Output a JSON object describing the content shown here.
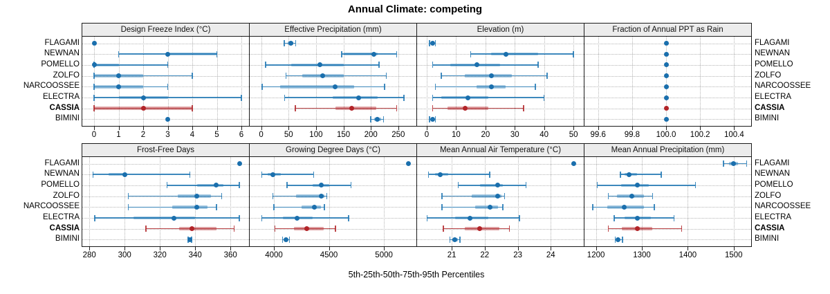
{
  "title": "Annual Climate: competing",
  "caption": "5th-25th-50th-75th-95th Percentiles",
  "colors": {
    "blue": "#1f77b4",
    "blue_dot": "#1a6fad",
    "red": "#b22428",
    "red_dot": "#b22428",
    "strip_bg": "#ececec",
    "grid": "#b4b4b4",
    "border": "#1a1a1a"
  },
  "chart_data": {
    "type": "percentile-dotplot",
    "layout": {
      "rows": 2,
      "cols": 4,
      "legend_position": "none",
      "grid": "dotted"
    },
    "percentile_labels": [
      "5th",
      "25th",
      "50th",
      "75th",
      "95th"
    ],
    "categories": [
      "FLAGAMI",
      "NEWNAN",
      "POMELLO",
      "ZOLFO",
      "NARCOOSSEE",
      "ELECTRA",
      "CASSIA",
      "BIMINI"
    ],
    "highlight_category": "CASSIA",
    "panels": [
      {
        "title": "Design Freeze Index (°C)",
        "xlim": [
          -0.48,
          6.31
        ],
        "ticks": [
          0,
          1,
          2,
          3,
          4,
          5,
          6
        ],
        "tick_labels": [
          "0",
          "1",
          "2",
          "3",
          "4",
          "5",
          "6"
        ],
        "series": [
          [
            0,
            0,
            0,
            0,
            0
          ],
          [
            1,
            3,
            3,
            5,
            5
          ],
          [
            0,
            0,
            0,
            1,
            3
          ],
          [
            0,
            0,
            1,
            2,
            4
          ],
          [
            0,
            0,
            1,
            2,
            3
          ],
          [
            0,
            1,
            2,
            3,
            6
          ],
          [
            0,
            0,
            2,
            4,
            4
          ],
          [
            3,
            3,
            3,
            3,
            3
          ]
        ]
      },
      {
        "title": "Effective Precipitation (mm)",
        "xlim": [
          -21,
          283
        ],
        "ticks": [
          0,
          50,
          100,
          150,
          200,
          250
        ],
        "tick_labels": [
          "0",
          "50",
          "100",
          "150",
          "200",
          "250"
        ],
        "series": [
          [
            42,
            48,
            54,
            58,
            63
          ],
          [
            147,
            150,
            205,
            212,
            247
          ],
          [
            8,
            55,
            107,
            150,
            215
          ],
          [
            45,
            75,
            112,
            150,
            228
          ],
          [
            2,
            35,
            135,
            170,
            225
          ],
          [
            43,
            130,
            178,
            212,
            260
          ],
          [
            62,
            135,
            165,
            210,
            247
          ],
          [
            200,
            206,
            212,
            218,
            223
          ]
        ]
      },
      {
        "title": "Elevation (m)",
        "xlim": [
          -3.3,
          53.5
        ],
        "ticks": [
          0,
          10,
          20,
          30,
          40,
          50
        ],
        "tick_labels": [
          "0",
          "10",
          "20",
          "30",
          "40",
          "50"
        ],
        "series": [
          [
            1,
            1.5,
            2,
            2.5,
            3
          ],
          [
            15,
            22,
            27,
            38,
            50
          ],
          [
            2,
            8,
            17,
            25,
            38
          ],
          [
            5,
            13,
            22,
            29,
            41
          ],
          [
            3,
            17,
            22,
            27,
            37
          ],
          [
            2,
            5,
            14,
            21,
            40
          ],
          [
            2,
            7,
            13,
            21,
            33
          ],
          [
            1,
            1.5,
            2,
            2.5,
            3
          ]
        ]
      },
      {
        "title": "Fraction of Annual PPT as Rain",
        "xlim": [
          99.52,
          100.5
        ],
        "ticks": [
          99.6,
          99.8,
          100.0,
          100.2,
          100.4
        ],
        "tick_labels": [
          "99.6",
          "99.8",
          "100.0",
          "100.2",
          "100.4"
        ],
        "series": [
          [
            100,
            100,
            100,
            100,
            100
          ],
          [
            100,
            100,
            100,
            100,
            100
          ],
          [
            100,
            100,
            100,
            100,
            100
          ],
          [
            100,
            100,
            100,
            100,
            100
          ],
          [
            100,
            100,
            100,
            100,
            100
          ],
          [
            100,
            100,
            100,
            100,
            100
          ],
          [
            100,
            100,
            100,
            100,
            100
          ],
          [
            100,
            100,
            100,
            100,
            100
          ]
        ]
      },
      {
        "title": "Frost-Free Days",
        "xlim": [
          276,
          370.5
        ],
        "ticks": [
          280,
          300,
          320,
          340,
          360
        ],
        "tick_labels": [
          "280",
          "300",
          "320",
          "340",
          "360"
        ],
        "series": [
          [
            365,
            365,
            365,
            365,
            365
          ],
          [
            282,
            291,
            300,
            301,
            337
          ],
          [
            324,
            341,
            352,
            356,
            365
          ],
          [
            302,
            330,
            341,
            349,
            355
          ],
          [
            302,
            327,
            341,
            347,
            352
          ],
          [
            283,
            305,
            328,
            340,
            365
          ],
          [
            312,
            331,
            338,
            352,
            362
          ],
          [
            336,
            336.5,
            337,
            337.5,
            338
          ]
        ]
      },
      {
        "title": "Growing Degree Days (°C)",
        "xlim": [
          3780,
          5295
        ],
        "ticks": [
          4000,
          4500,
          5000
        ],
        "tick_labels": [
          "4000",
          "4500",
          "5000"
        ],
        "series": [
          [
            5220,
            5220,
            5220,
            5220,
            5220
          ],
          [
            3890,
            3940,
            3990,
            4060,
            4360
          ],
          [
            4120,
            4350,
            4430,
            4500,
            4700
          ],
          [
            3990,
            4200,
            4430,
            4460,
            4480
          ],
          [
            4000,
            4250,
            4370,
            4430,
            4460
          ],
          [
            3890,
            4080,
            4210,
            4350,
            4680
          ],
          [
            4010,
            4180,
            4300,
            4450,
            4560
          ],
          [
            4080,
            4095,
            4110,
            4125,
            4140
          ]
        ]
      },
      {
        "title": "Mean Annual Air Temperature (°C)",
        "xlim": [
          19.95,
          25.0
        ],
        "ticks": [
          21,
          22,
          23,
          24
        ],
        "tick_labels": [
          "21",
          "22",
          "23",
          "24"
        ],
        "series": [
          [
            24.7,
            24.7,
            24.7,
            24.7,
            24.7
          ],
          [
            20.3,
            20.5,
            20.65,
            20.9,
            22.15
          ],
          [
            21.2,
            21.85,
            22.4,
            22.55,
            23.25
          ],
          [
            20.7,
            21.6,
            22.4,
            22.5,
            22.6
          ],
          [
            20.7,
            21.7,
            22.15,
            22.4,
            22.55
          ],
          [
            20.25,
            21.1,
            21.55,
            22.1,
            23.05
          ],
          [
            20.75,
            21.4,
            21.85,
            22.45,
            22.75
          ],
          [
            20.95,
            21.02,
            21.1,
            21.18,
            21.25
          ]
        ]
      },
      {
        "title": "Mean Annual Precipitation (mm)",
        "xlim": [
          1175,
          1538
        ],
        "ticks": [
          1200,
          1300,
          1400,
          1500
        ],
        "tick_labels": [
          "1200",
          "1300",
          "1400",
          "1500"
        ],
        "series": [
          [
            1478,
            1490,
            1500,
            1510,
            1528
          ],
          [
            1253,
            1262,
            1272,
            1290,
            1342
          ],
          [
            1203,
            1255,
            1290,
            1315,
            1417
          ],
          [
            1227,
            1245,
            1278,
            1305,
            1323
          ],
          [
            1193,
            1225,
            1262,
            1305,
            1327
          ],
          [
            1240,
            1262,
            1290,
            1320,
            1370
          ],
          [
            1227,
            1257,
            1290,
            1322,
            1387
          ],
          [
            1242,
            1245,
            1248,
            1252,
            1258
          ]
        ]
      }
    ]
  }
}
